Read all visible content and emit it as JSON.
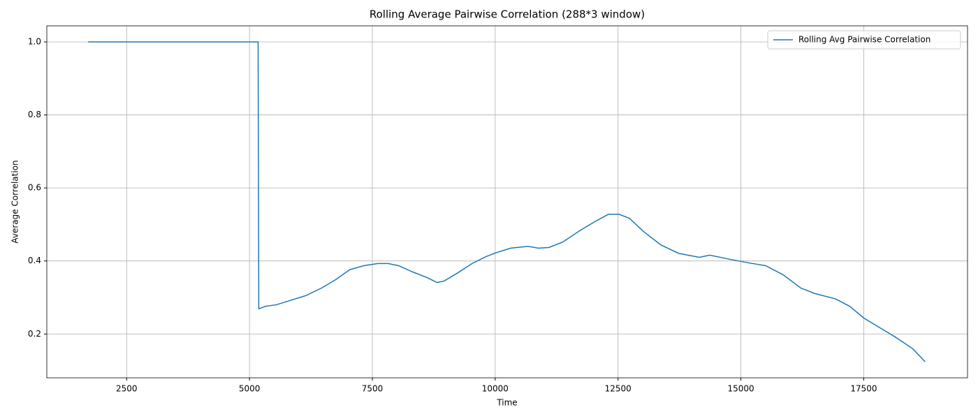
{
  "chart_data": {
    "type": "line",
    "title": "Rolling Average Pairwise Correlation (288*3 window)",
    "x_label": "Time",
    "y_label": "Average Correlation",
    "x": [
      1717,
      5175,
      5189,
      5331,
      5545,
      5830,
      6143,
      6470,
      6755,
      7040,
      7323,
      7608,
      7822,
      8035,
      8320,
      8604,
      8818,
      8960,
      9245,
      9529,
      9814,
      10027,
      10312,
      10668,
      10880,
      11094,
      11378,
      11734,
      12019,
      12304,
      12517,
      12731,
      13015,
      13371,
      13730,
      14154,
      14367,
      14723,
      15150,
      15506,
      15861,
      16217,
      16502,
      16928,
      17213,
      17497,
      17853,
      18138,
      18494,
      18750
    ],
    "series": [
      {
        "name": "Rolling Avg Pairwise Correlation",
        "color": "#1f77b4",
        "values": [
          1.0,
          1.0,
          0.269,
          0.276,
          0.28,
          0.292,
          0.305,
          0.326,
          0.349,
          0.376,
          0.387,
          0.393,
          0.393,
          0.387,
          0.37,
          0.355,
          0.341,
          0.345,
          0.368,
          0.393,
          0.412,
          0.423,
          0.435,
          0.44,
          0.435,
          0.437,
          0.452,
          0.484,
          0.507,
          0.528,
          0.528,
          0.517,
          0.481,
          0.444,
          0.421,
          0.41,
          0.416,
          0.406,
          0.395,
          0.387,
          0.362,
          0.326,
          0.311,
          0.296,
          0.276,
          0.244,
          0.215,
          0.192,
          0.16,
          0.124
        ]
      }
    ],
    "xlim": [
      875,
      19612
    ],
    "ylim": [
      0.08,
      1.044
    ],
    "xticks": [
      2500,
      5000,
      7500,
      10000,
      12500,
      15000,
      17500
    ],
    "yticks": [
      0.2,
      0.4,
      0.6,
      0.8,
      {
        "value": 1,
        "label": "1.0"
      }
    ],
    "grid": true,
    "legend": "upper right"
  }
}
